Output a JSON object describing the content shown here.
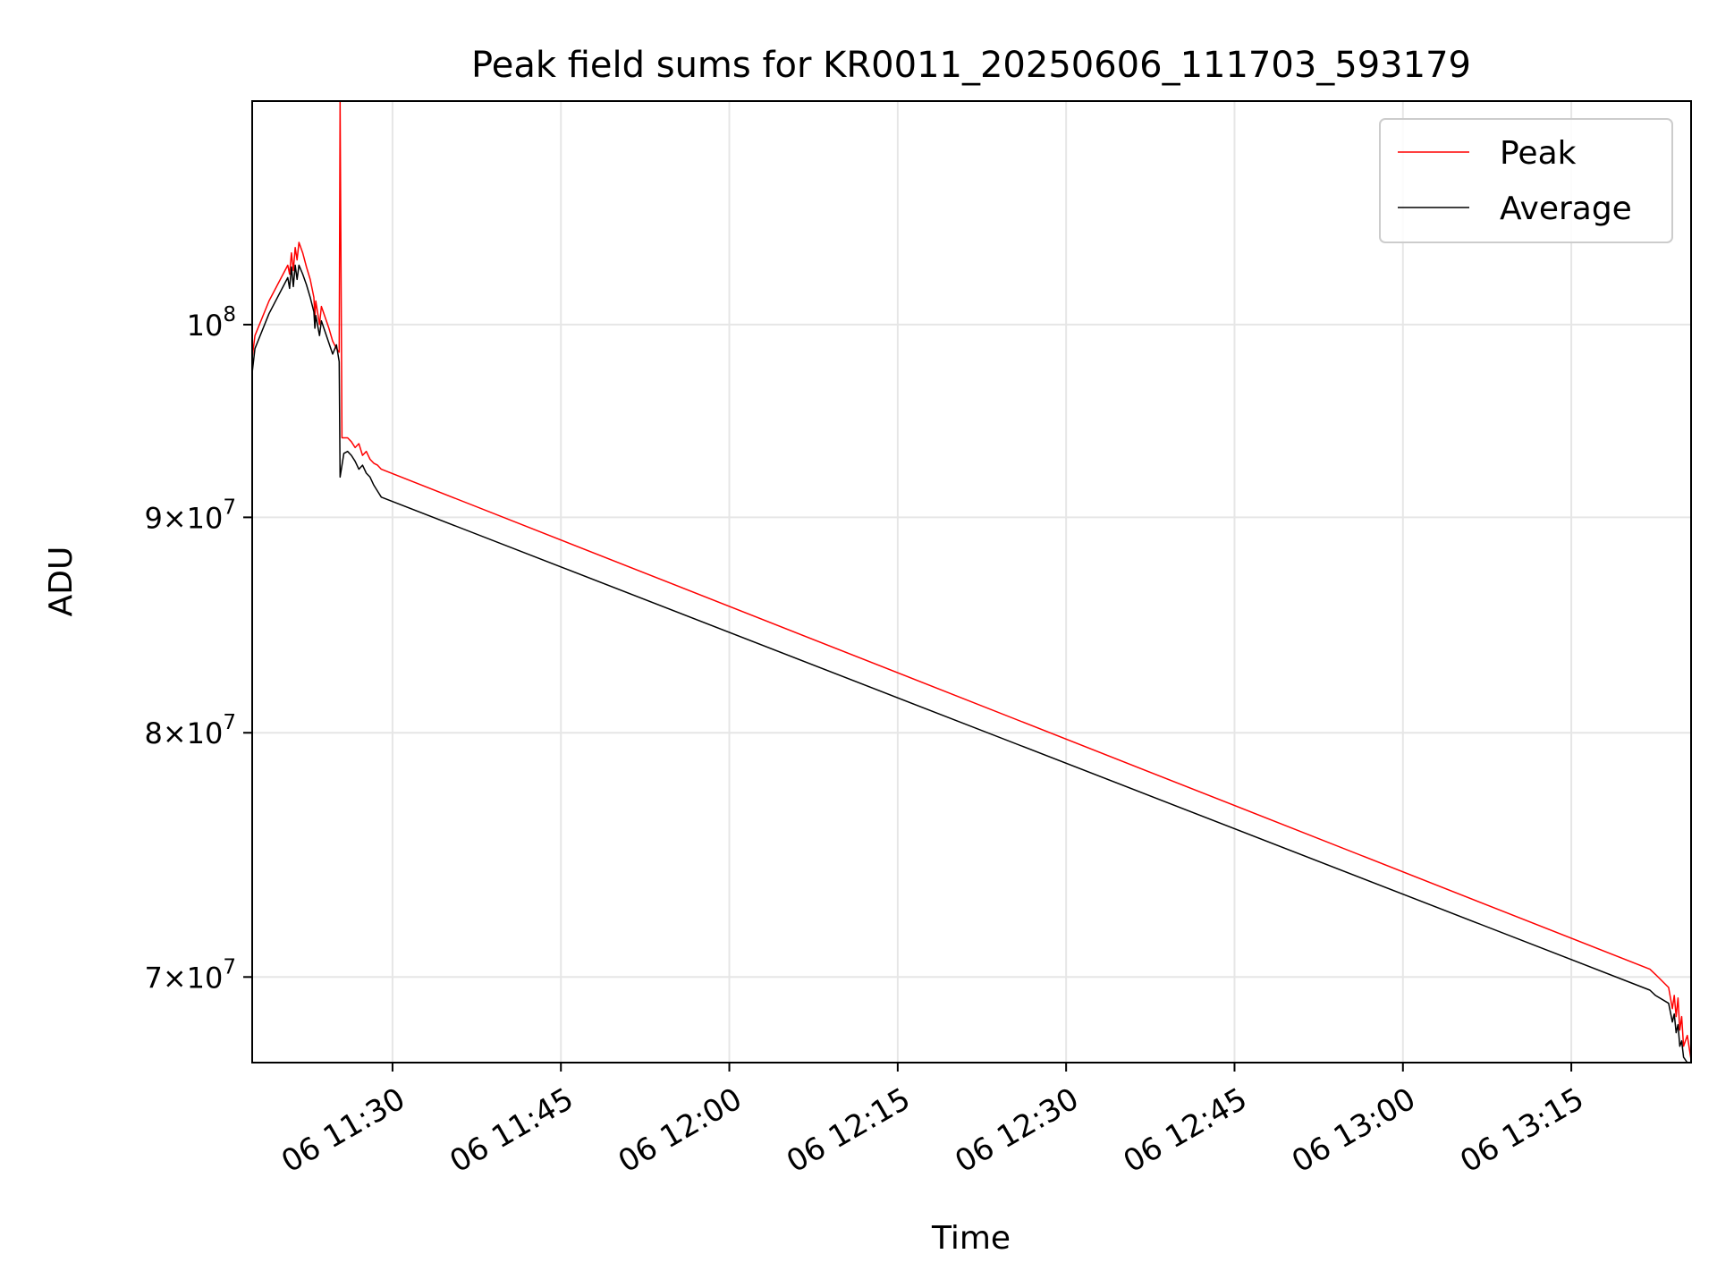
{
  "chart_data": {
    "type": "line",
    "title": "Peak field sums for KR0011_20250606_111703_593179",
    "xlabel": "Time",
    "ylabel": "ADU",
    "x_unit": "time of day (HH:MM), day 06",
    "yscale": "log",
    "xlim": [
      "11:17:30",
      "13:25:40"
    ],
    "ylim": [
      66800000,
      113000000
    ],
    "grid": true,
    "legend_position": "upper right",
    "xticks": [
      "06 11:30",
      "06 11:45",
      "06 12:00",
      "06 12:15",
      "06 12:30",
      "06 12:45",
      "06 13:00",
      "06 13:15"
    ],
    "yticks": [
      {
        "value": 70000000,
        "mant": "7",
        "exp": "7"
      },
      {
        "value": 80000000,
        "mant": "8",
        "exp": "7"
      },
      {
        "value": 90000000,
        "mant": "9",
        "exp": "7"
      },
      {
        "value": 100000000,
        "mant": "",
        "exp": "8"
      }
    ],
    "series": [
      {
        "name": "Peak",
        "color": "#ff0000",
        "x": [
          "11:17:30",
          "11:17:45",
          "11:19:00",
          "11:20:40",
          "11:20:50",
          "11:21:00",
          "11:21:10",
          "11:21:20",
          "11:21:30",
          "11:21:40",
          "11:22:00",
          "11:22:20",
          "11:22:40",
          "11:23:00",
          "11:23:05",
          "11:23:10",
          "11:23:30",
          "11:23:40",
          "11:24:00",
          "11:24:20",
          "11:24:40",
          "11:25:00",
          "11:25:15",
          "11:25:20",
          "11:25:30",
          "11:25:40",
          "11:26:00",
          "11:26:20",
          "11:26:40",
          "11:27:00",
          "11:27:20",
          "11:27:40",
          "11:28:00",
          "11:28:20",
          "11:28:40",
          "11:29:00",
          "13:22:00",
          "13:22:30",
          "13:23:40",
          "13:24:00",
          "13:24:10",
          "13:24:20",
          "13:24:30",
          "13:24:40",
          "13:24:50",
          "13:25:00",
          "13:25:20",
          "13:25:40"
        ],
        "y": [
          98200000,
          99400000,
          101300000,
          103300000,
          102800000,
          104000000,
          103000000,
          104300000,
          103600000,
          104600000,
          104000000,
          103200000,
          102500000,
          101500000,
          100400000,
          101300000,
          100000000,
          101000000,
          100400000,
          99800000,
          99100000,
          98700000,
          98500000,
          113000000,
          94000000,
          94000000,
          94000000,
          93800000,
          93500000,
          93700000,
          93100000,
          93300000,
          92900000,
          92700000,
          92600000,
          92400000,
          70300000,
          70100000,
          69600000,
          68800000,
          69300000,
          68500000,
          69200000,
          68000000,
          68500000,
          67400000,
          67800000,
          66900000
        ]
      },
      {
        "name": "Average",
        "color": "#000000",
        "x": [
          "11:17:30",
          "11:17:45",
          "11:19:00",
          "11:20:40",
          "11:20:50",
          "11:21:00",
          "11:21:10",
          "11:21:20",
          "11:21:30",
          "11:21:40",
          "11:22:00",
          "11:22:20",
          "11:22:40",
          "11:23:00",
          "11:23:05",
          "11:23:10",
          "11:23:30",
          "11:23:40",
          "11:24:00",
          "11:24:20",
          "11:24:40",
          "11:25:00",
          "11:25:15",
          "11:25:20",
          "11:25:40",
          "11:26:00",
          "11:26:20",
          "11:26:40",
          "11:27:00",
          "11:27:20",
          "11:27:40",
          "11:28:00",
          "11:28:20",
          "11:28:40",
          "11:29:00",
          "13:22:00",
          "13:22:30",
          "13:23:40",
          "13:24:00",
          "13:24:10",
          "13:24:20",
          "13:24:30",
          "13:24:40",
          "13:24:50",
          "13:25:00",
          "13:25:20",
          "13:25:40"
        ],
        "y": [
          97400000,
          98700000,
          100600000,
          102600000,
          102000000,
          103200000,
          102100000,
          103300000,
          102500000,
          103300000,
          102800000,
          102200000,
          101500000,
          100700000,
          99800000,
          100500000,
          99400000,
          100200000,
          99600000,
          99000000,
          98400000,
          98900000,
          98000000,
          92000000,
          93200000,
          93300000,
          93100000,
          92800000,
          92400000,
          92600000,
          92200000,
          92000000,
          91600000,
          91300000,
          91000000,
          69500000,
          69300000,
          69000000,
          68300000,
          68600000,
          67900000,
          68200000,
          67400000,
          67600000,
          67000000,
          66800000,
          66800000
        ]
      }
    ]
  }
}
